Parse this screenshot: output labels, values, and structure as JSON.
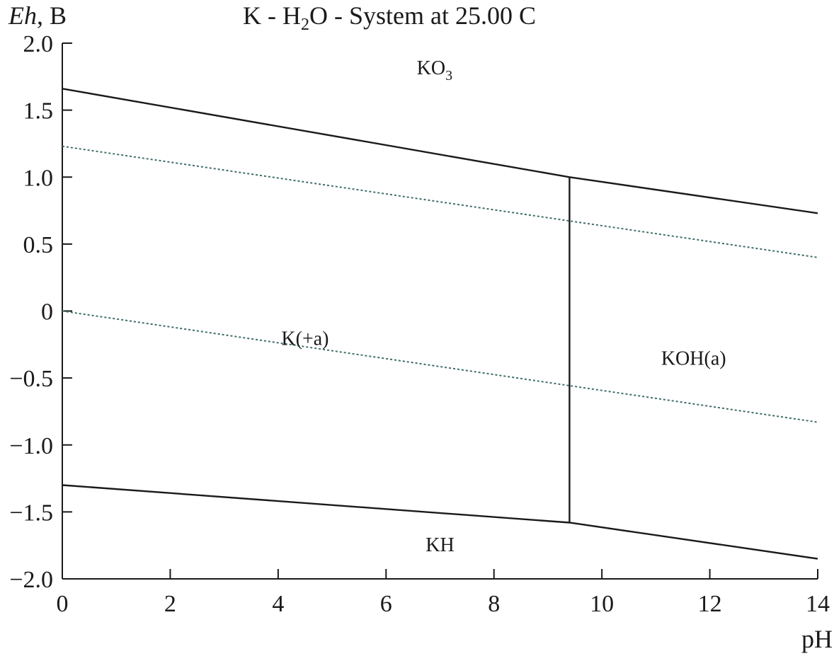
{
  "chart_data": {
    "type": "line",
    "title": "K - H2O - System at 25.00 C",
    "title_parts": {
      "a": "K - H",
      "sub": "2",
      "b": "O - System at 25.00 C"
    },
    "ylabel": "Eh, B",
    "ylabel_parts": {
      "italic": "Eh",
      "rest": ", B"
    },
    "xlabel": "pH",
    "xlim": [
      0,
      14
    ],
    "ylim": [
      -2.0,
      2.0
    ],
    "x_ticks": [
      0,
      2,
      4,
      6,
      8,
      10,
      12,
      14
    ],
    "x_tick_labels": [
      "0",
      "2",
      "4",
      "6",
      "8",
      "10",
      "12",
      "14"
    ],
    "y_ticks": [
      2.0,
      1.5,
      1.0,
      0.5,
      0,
      -0.5,
      -1.0,
      -1.5,
      -2.0
    ],
    "y_tick_labels": [
      "2.0",
      "1.5",
      "1.0",
      "0.5",
      "0",
      "−0.5",
      "−1.0",
      "−1.5",
      "−2.0"
    ],
    "grid": false,
    "series": [
      {
        "style": "solid",
        "color": "#1a1a1a",
        "points": [
          [
            0,
            1.66
          ],
          [
            9.4,
            1.0
          ],
          [
            14,
            0.73
          ]
        ]
      },
      {
        "style": "solid",
        "color": "#1a1a1a",
        "points": [
          [
            0,
            -1.3
          ],
          [
            9.4,
            -1.58
          ],
          [
            14,
            -1.85
          ]
        ]
      },
      {
        "style": "solid",
        "color": "#1a1a1a",
        "points": [
          [
            9.4,
            1.0
          ],
          [
            9.4,
            -1.58
          ]
        ]
      },
      {
        "style": "dotted",
        "color": "#3f6e6a",
        "points": [
          [
            0,
            1.23
          ],
          [
            14,
            0.4
          ]
        ]
      },
      {
        "style": "dotted",
        "color": "#3f6e6a",
        "points": [
          [
            0,
            0.0
          ],
          [
            14,
            -0.83
          ]
        ]
      }
    ],
    "annotations": [
      {
        "text": "KO",
        "sub": "3",
        "x": 6.9,
        "y": 1.82
      },
      {
        "text": "K(+a)",
        "sub": "",
        "x": 4.5,
        "y": -0.2
      },
      {
        "text": "KOH(a)",
        "sub": "",
        "x": 11.7,
        "y": -0.35
      },
      {
        "text": "KH",
        "sub": "",
        "x": 7.0,
        "y": -1.74
      }
    ]
  }
}
